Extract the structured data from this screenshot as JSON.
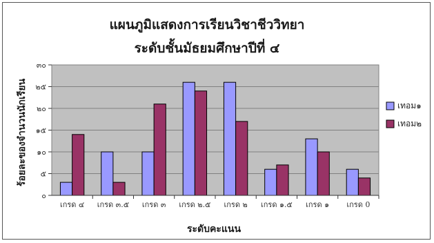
{
  "chart_data": {
    "type": "bar",
    "title_lines": [
      "แผนภูมิแสดงการเรียนวิชาชีววิทยา",
      "ระดับชั้นมัธยมศึกษาปีที่ ๔"
    ],
    "xlabel": "ระดับคะแนน",
    "ylabel": "ร้อยละของจำนวนนักเรียน",
    "categories": [
      "เกรด ๔",
      "เกรด ๓.๕",
      "เกรด ๓",
      "เกรด ๒.๕",
      "เกรด ๒",
      "เกรด ๑.๕",
      "เกรด ๑",
      "เกรด 0"
    ],
    "series": [
      {
        "name": "เทอม๑",
        "values": [
          3,
          10,
          10,
          26,
          26,
          6,
          13,
          6
        ]
      },
      {
        "name": "เทอม๒",
        "values": [
          14,
          3,
          21,
          24,
          17,
          7,
          10,
          4
        ]
      }
    ],
    "ylim": [
      0,
      30
    ],
    "yticks": [
      0,
      5,
      10,
      15,
      20,
      25,
      30
    ],
    "ytick_labels": [
      "๐",
      "๕",
      "๑๐",
      "๑๕",
      "๒๐",
      "๒๕",
      "๓๐"
    ],
    "grid": true,
    "legend_position": "right",
    "colors": {
      "series": [
        "#9999ff",
        "#993366"
      ],
      "plot_background": "#c0c0c0",
      "gridline": "#808080"
    }
  }
}
